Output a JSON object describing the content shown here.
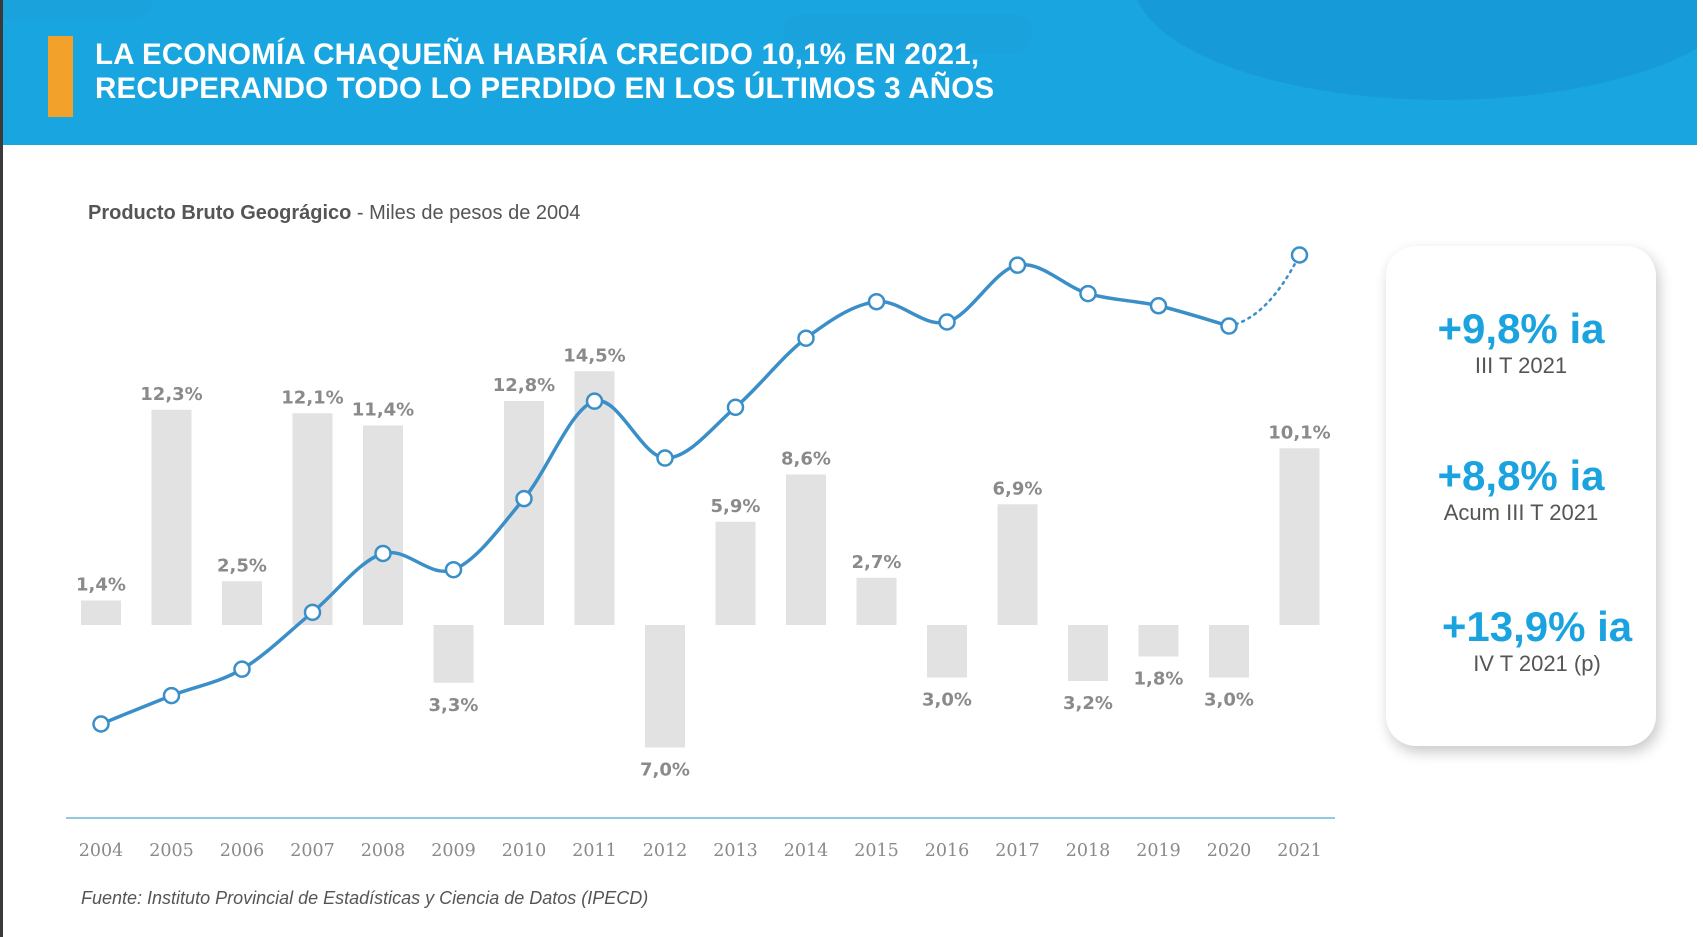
{
  "header": {
    "title_line1": "LA ECONOMÍA CHAQUEÑA HABRÍA CRECIDO 10,1% EN 2021,",
    "title_line2": "RECUPERANDO TODO LO PERDIDO EN LOS ÚLTIMOS 3 AÑOS"
  },
  "subtitle": {
    "bold": "Producto Bruto Geográgico",
    "rest": " - Miles de pesos de 2004"
  },
  "source": "Fuente: Instituto Provincial de Estadísticas y Ciencia de Datos (IPECD)",
  "metrics": [
    {
      "value": "+9,8% ia",
      "label": "III T 2021"
    },
    {
      "value": "+8,8% ia",
      "label": "Acum III T 2021"
    },
    {
      "value": "+13,9% ia",
      "label": "IV T 2021 (p)"
    }
  ],
  "colors": {
    "header": "#19a6e0",
    "accent": "#f2a12a",
    "line": "#3a8fc8",
    "bars": "#e2e2e3",
    "metric_text": "#1aa3df"
  },
  "chart_data": {
    "type": "bar",
    "categories": [
      "2004",
      "2005",
      "2006",
      "2007",
      "2008",
      "2009",
      "2010",
      "2011",
      "2012",
      "2013",
      "2014",
      "2015",
      "2016",
      "2017",
      "2018",
      "2019",
      "2020",
      "2021"
    ],
    "series": [
      {
        "type": "bar",
        "values": [
          1.4,
          12.3,
          2.5,
          12.1,
          11.4,
          -3.3,
          12.8,
          14.5,
          -7.0,
          5.9,
          8.6,
          2.7,
          -3.0,
          6.9,
          -3.2,
          -1.8,
          -3.0,
          10.1
        ],
        "labels": [
          "1,4%",
          "12,3%",
          "2,5%",
          "12,1%",
          "11,4%",
          "3,3%",
          "12,8%",
          "14,5%",
          "7,0%",
          "5,9%",
          "8,6%",
          "2,7%",
          "3,0%",
          "6,9%",
          "3,2%",
          "1,8%",
          "3,0%",
          "10,1%"
        ]
      },
      {
        "type": "line",
        "values": [
          100,
          101.4,
          102.7,
          105.5,
          108.4,
          107.6,
          111.1,
          115.9,
          113.1,
          115.6,
          119.0,
          120.8,
          119.8,
          122.6,
          121.2,
          120.6,
          119.6,
          123.1
        ],
        "projected_from_index": 16
      }
    ],
    "ylim": [
      -8,
      16
    ],
    "legend": "none"
  }
}
